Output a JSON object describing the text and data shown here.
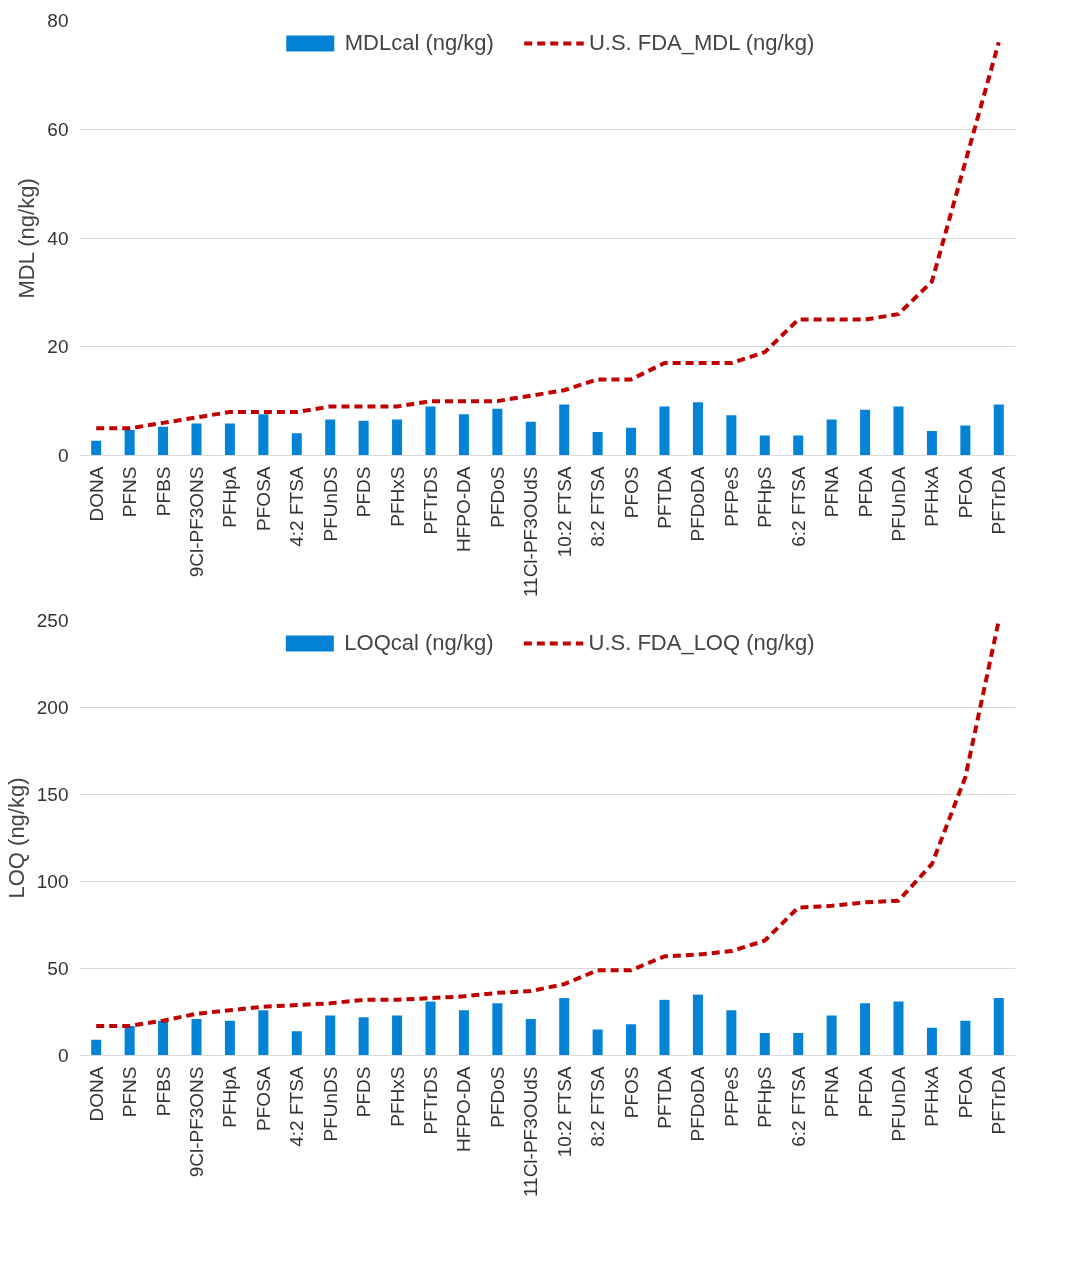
{
  "chart_data": [
    {
      "type": "bar",
      "ylabel": "MDL (ng/kg)",
      "categories": [
        "DONA",
        "PFNS",
        "PFBS",
        "9Cl-PF3ONS",
        "PFHpA",
        "PFOSA",
        "4:2 FTSA",
        "PFUnDS",
        "PFDS",
        "PFHxS",
        "PFTrDS",
        "HFPO-DA",
        "PFDoS",
        "11Cl-PF3OUdS",
        "10:2 FTSA",
        "8:2 FTSA",
        "PFOS",
        "PFTDA",
        "PFDoDA",
        "PFPeS",
        "PFHpS",
        "6:2 FTSA",
        "PFNA",
        "PFDA",
        "PFUnDA",
        "PFHxA",
        "PFOA",
        "PFTrDA"
      ],
      "series": [
        {
          "name": "MDLcal (ng/kg)",
          "color": "#0483d6",
          "values": [
            2.7,
            4.7,
            5.3,
            5.9,
            5.9,
            7.6,
            4.1,
            6.6,
            6.4,
            6.6,
            9.0,
            7.6,
            8.6,
            6.2,
            9.4,
            4.3,
            5.1,
            9.0,
            9.8,
            7.4,
            3.7,
            3.7,
            6.6,
            8.4,
            9.0,
            4.5,
            5.5,
            9.4
          ]
        },
        {
          "name": "U.S. FDA_MDL (ng/kg)",
          "type": "line",
          "color": "#c00000",
          "line_style": "dashed",
          "values": [
            5,
            5,
            6,
            7,
            8,
            8,
            8,
            9,
            9,
            9,
            10,
            10,
            10,
            11,
            12,
            14,
            14,
            17,
            17,
            17,
            19,
            25,
            25,
            25,
            26,
            32,
            54,
            76
          ]
        }
      ],
      "ylim": [
        0,
        80
      ],
      "yticks": [
        0,
        20,
        40,
        60,
        80
      ],
      "grid": "y",
      "legend": "top"
    },
    {
      "type": "bar",
      "ylabel": "LOQ (ng/kg)",
      "categories": [
        "DONA",
        "PFNS",
        "PFBS",
        "9Cl-PF3ONS",
        "PFHpA",
        "PFOSA",
        "4:2 FTSA",
        "PFUnDS",
        "PFDS",
        "PFHxS",
        "PFTrDS",
        "HFPO-DA",
        "PFDoS",
        "11Cl-PF3OUdS",
        "10:2 FTSA",
        "8:2 FTSA",
        "PFOS",
        "PFTDA",
        "PFDoDA",
        "PFPeS",
        "PFHpS",
        "6:2 FTSA",
        "PFNA",
        "PFDA",
        "PFUnDA",
        "PFHxA",
        "PFOA",
        "PFTrDA"
      ],
      "series": [
        {
          "name": "LOQcal (ng/kg)",
          "color": "#0483d6",
          "values": [
            9,
            17,
            20,
            21,
            20,
            26,
            14,
            23,
            22,
            23,
            31,
            26,
            30,
            21,
            33,
            15,
            18,
            32,
            35,
            26,
            13,
            13,
            23,
            30,
            31,
            16,
            20,
            33
          ]
        },
        {
          "name": "U.S. FDA_LOQ (ng/kg)",
          "type": "line",
          "color": "#c00000",
          "line_style": "dashed",
          "values": [
            17,
            17,
            20,
            24,
            26,
            28,
            29,
            30,
            32,
            32,
            33,
            34,
            36,
            37,
            41,
            49,
            49,
            57,
            58,
            60,
            66,
            85,
            86,
            88,
            89,
            110,
            160,
            250
          ]
        }
      ],
      "ylim": [
        0,
        250
      ],
      "yticks": [
        0,
        50,
        100,
        150,
        200,
        250
      ],
      "grid": "y",
      "legend": "top"
    }
  ]
}
